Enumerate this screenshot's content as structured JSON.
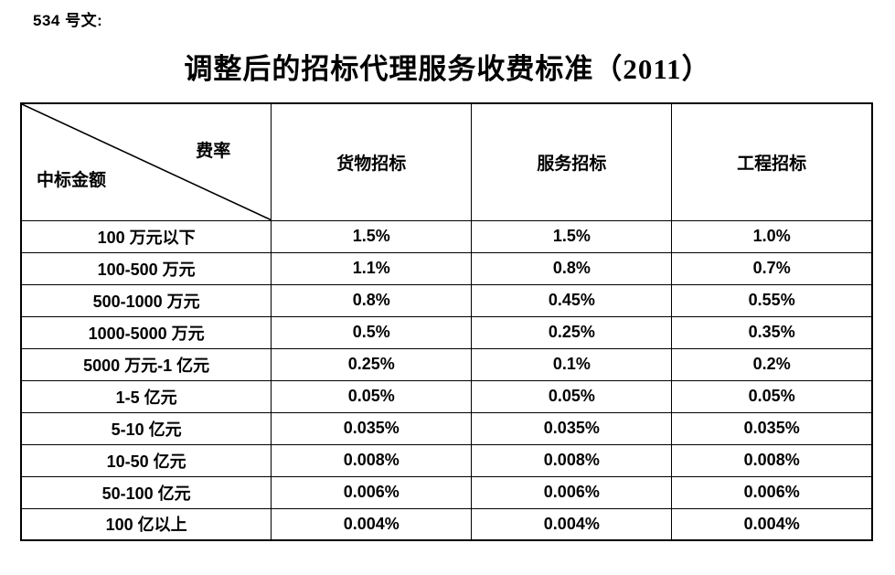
{
  "page": {
    "doc_label": "534 号文:",
    "title": "调整后的招标代理服务收费标准（2011）"
  },
  "table": {
    "corner": {
      "top_right": "费率",
      "bottom_left": "中标金额"
    },
    "columns": [
      "货物招标",
      "服务招标",
      "工程招标"
    ],
    "rows": [
      {
        "label": "100 万元以下",
        "values": [
          "1.5%",
          "1.5%",
          "1.0%"
        ]
      },
      {
        "label": "100-500 万元",
        "values": [
          "1.1%",
          "0.8%",
          "0.7%"
        ]
      },
      {
        "label": "500-1000 万元",
        "values": [
          "0.8%",
          "0.45%",
          "0.55%"
        ]
      },
      {
        "label": "1000-5000 万元",
        "values": [
          "0.5%",
          "0.25%",
          "0.35%"
        ]
      },
      {
        "label": "5000 万元-1 亿元",
        "values": [
          "0.25%",
          "0.1%",
          "0.2%"
        ]
      },
      {
        "label": "1-5 亿元",
        "values": [
          "0.05%",
          "0.05%",
          "0.05%"
        ]
      },
      {
        "label": "5-10 亿元",
        "values": [
          "0.035%",
          "0.035%",
          "0.035%"
        ]
      },
      {
        "label": "10-50 亿元",
        "values": [
          "0.008%",
          "0.008%",
          "0.008%"
        ]
      },
      {
        "label": "50-100 亿元",
        "values": [
          "0.006%",
          "0.006%",
          "0.006%"
        ]
      },
      {
        "label": "100 亿以上",
        "values": [
          "0.004%",
          "0.004%",
          "0.004%"
        ]
      }
    ]
  },
  "colors": {
    "text": "#000000",
    "background": "#ffffff",
    "border": "#000000"
  }
}
